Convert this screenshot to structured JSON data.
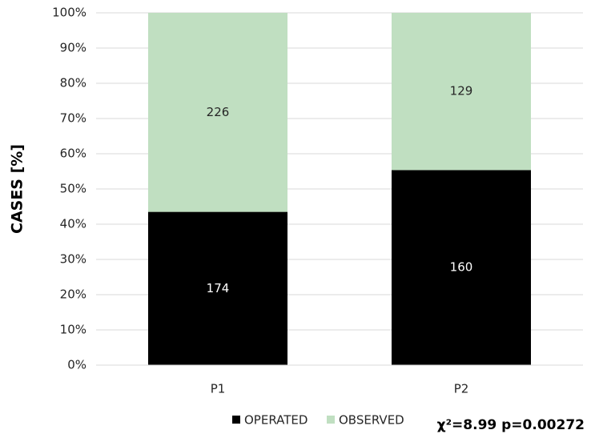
{
  "chart_data": {
    "type": "stacked100",
    "y_label": "CASES [%]",
    "categories": [
      "P1",
      "P2"
    ],
    "series": [
      {
        "name": "OPERATED",
        "color": "#000000",
        "values": [
          174,
          160
        ]
      },
      {
        "name": "OBSERVED",
        "color": "#c0dfc1",
        "values": [
          226,
          129
        ]
      }
    ],
    "ylim": [
      0,
      100
    ],
    "yticks": [
      {
        "value": 0,
        "label": "0%"
      },
      {
        "value": 10,
        "label": "10%"
      },
      {
        "value": 20,
        "label": "20%"
      },
      {
        "value": 30,
        "label": "30%"
      },
      {
        "value": 40,
        "label": "40%"
      },
      {
        "value": 50,
        "label": "50%"
      },
      {
        "value": 60,
        "label": "60%"
      },
      {
        "value": 70,
        "label": "70%"
      },
      {
        "value": 80,
        "label": "80%"
      },
      {
        "value": 90,
        "label": "90%"
      },
      {
        "value": 100,
        "label": "100%"
      }
    ],
    "grid": true,
    "annotation": "χ²=8.99 p=0.00272"
  }
}
